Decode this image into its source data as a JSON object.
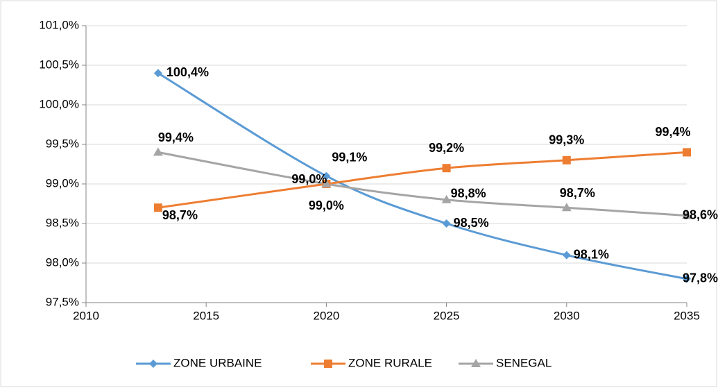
{
  "chart_data": {
    "type": "line",
    "x": [
      2013,
      2020,
      2025,
      2030,
      2035
    ],
    "xlim": [
      2010,
      2035
    ],
    "xticks": [
      2010,
      2015,
      2020,
      2025,
      2030,
      2035
    ],
    "ylim": [
      97.5,
      101.0
    ],
    "yticks": [
      {
        "value": 97.5,
        "label": "97,5%"
      },
      {
        "value": 98.0,
        "label": "98,0%"
      },
      {
        "value": 98.5,
        "label": "98,5%"
      },
      {
        "value": 99.0,
        "label": "99,0%"
      },
      {
        "value": 99.5,
        "label": "99,5%"
      },
      {
        "value": 100.0,
        "label": "100,0%"
      },
      {
        "value": 100.5,
        "label": "100,5%"
      },
      {
        "value": 101.0,
        "label": "101,0%"
      }
    ],
    "grid": true,
    "legend": "bottom",
    "series": [
      {
        "name": "ZONE URBAINE",
        "color": "#5b9bd5",
        "marker": "diamond",
        "label_color": "#44546a",
        "values": [
          100.4,
          99.1,
          98.5,
          98.1,
          97.8
        ],
        "value_labels": [
          "100,4%",
          "99,1%",
          "98,5%",
          "98,1%",
          "97,8%"
        ]
      },
      {
        "name": "ZONE RURALE",
        "color": "#ed7d31",
        "marker": "square",
        "label_color": "#ff0000",
        "values": [
          98.7,
          99.0,
          99.2,
          99.3,
          99.4
        ],
        "value_labels": [
          "98,7%",
          "99,0%",
          "99,2%",
          "99,3%",
          "99,4%"
        ]
      },
      {
        "name": "SENEGAL",
        "color": "#a5a5a5",
        "marker": "triangle",
        "label_color": "#595959",
        "values": [
          99.4,
          99.0,
          98.8,
          98.7,
          98.6
        ],
        "value_labels": [
          "99,4%",
          "99,0%",
          "98,8%",
          "98,7%",
          "98,6%"
        ]
      }
    ]
  }
}
